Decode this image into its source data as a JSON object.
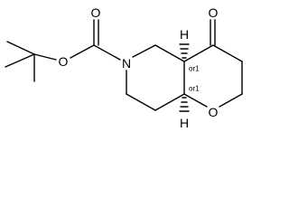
{
  "atoms": [
    {
      "label": "O"
    },
    {
      "label": "O"
    },
    {
      "label": "N"
    },
    {
      "label": "O"
    },
    {
      "label": "O"
    },
    {
      "label": "H"
    },
    {
      "label": "H"
    }
  ],
  "stereo_labels": [
    "or1",
    "or1"
  ]
}
